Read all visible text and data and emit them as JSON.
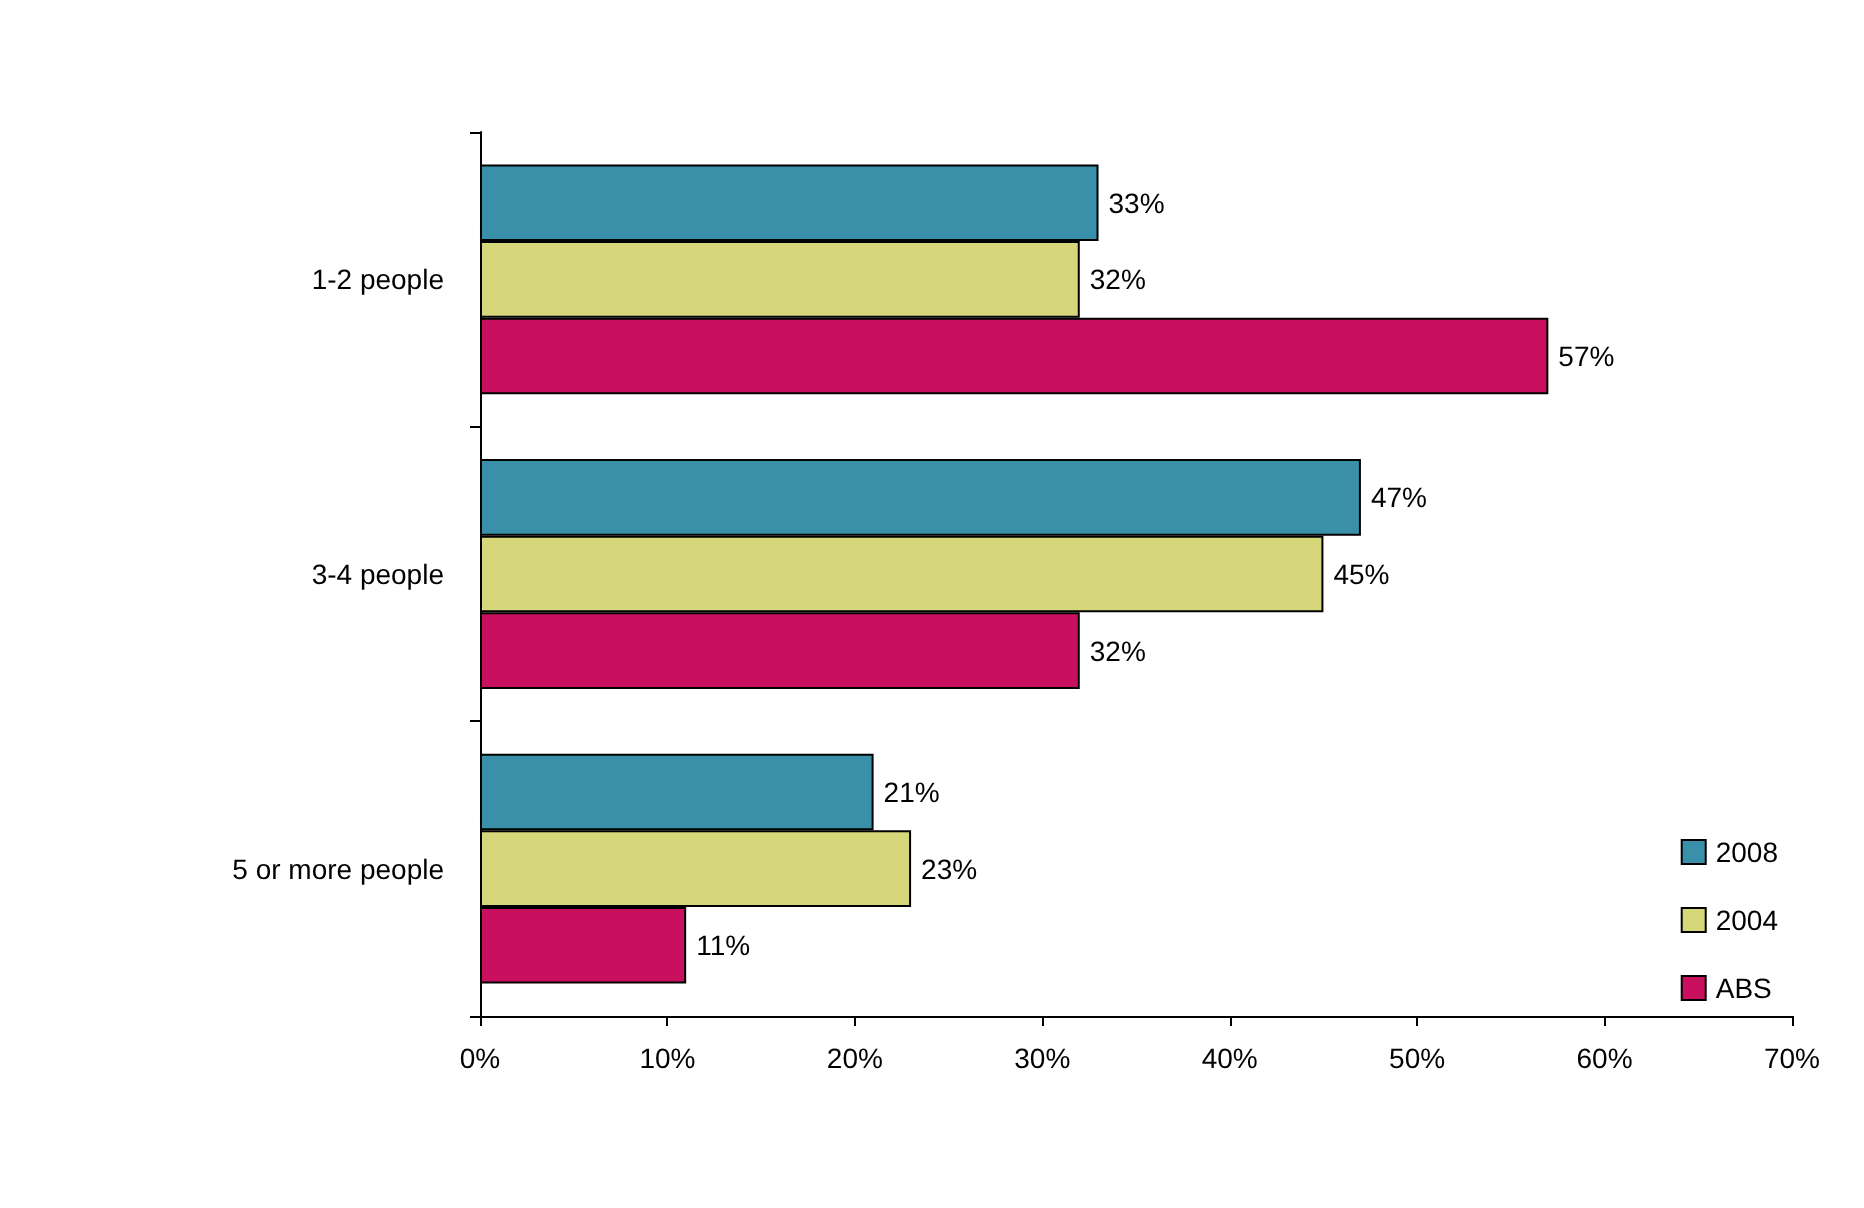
{
  "chart_data": {
    "type": "bar",
    "orientation": "horizontal",
    "categories": [
      "1-2 people",
      "3-4 people",
      "5 or more people"
    ],
    "series": [
      {
        "name": "2008",
        "color": "#3a90a8",
        "values": [
          33,
          47,
          21
        ],
        "value_labels": [
          "33%",
          "47%",
          "21%"
        ]
      },
      {
        "name": "2004",
        "color": "#d6d67a",
        "values": [
          32,
          45,
          23
        ],
        "value_labels": [
          "32%",
          "45%",
          "23%"
        ]
      },
      {
        "name": "ABS",
        "color": "#c8105e",
        "values": [
          57,
          32,
          11
        ],
        "value_labels": [
          "57%",
          "32%",
          "11%"
        ]
      }
    ],
    "xlim": [
      0,
      70
    ],
    "xticks": [
      {
        "value": 0,
        "label": "0%"
      },
      {
        "value": 10,
        "label": "10%"
      },
      {
        "value": 20,
        "label": "20%"
      },
      {
        "value": 30,
        "label": "30%"
      },
      {
        "value": 40,
        "label": "40%"
      },
      {
        "value": 50,
        "label": "50%"
      },
      {
        "value": 60,
        "label": "60%"
      },
      {
        "value": 70,
        "label": "70%"
      }
    ],
    "grid": false,
    "legend": "bottom right"
  }
}
